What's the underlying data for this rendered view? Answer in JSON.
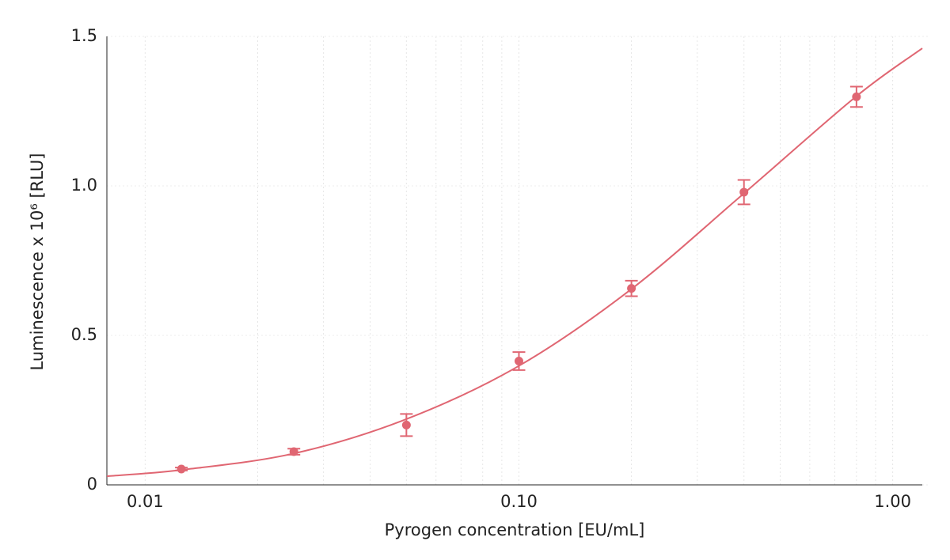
{
  "chart_data": {
    "type": "scatter",
    "xlabel": "Pyrogen concentration [EU/mL]",
    "ylabel": "Luminescence x 10⁶ [RLU]",
    "xscale": "log",
    "xlim": [
      0.0079,
      1.2
    ],
    "ylim": [
      0,
      1.5
    ],
    "xticks": [
      0.01,
      {
        "value": 0.1,
        "label": "0.10"
      },
      {
        "value": 1,
        "label": "1.00"
      }
    ],
    "xminorticks": [
      0.02,
      0.03,
      0.04,
      0.05,
      0.06,
      0.07,
      0.08,
      0.09,
      0.2,
      0.3,
      0.4,
      0.5,
      0.6,
      0.7,
      0.8,
      0.9
    ],
    "yticks": [
      0,
      0.5,
      {
        "value": 1,
        "label": "1.0"
      },
      1.5
    ],
    "grid": true,
    "color": "#e06672",
    "points": {
      "x": [
        0.0125,
        0.025,
        0.05,
        0.1,
        0.2,
        0.4,
        0.8
      ],
      "values": [
        0.053,
        0.111,
        0.2,
        0.414,
        0.657,
        0.979,
        1.298
      ],
      "errors": [
        0.005,
        0.01,
        0.037,
        0.03,
        0.026,
        0.041,
        0.034
      ]
    },
    "fit": {
      "x": [
        0.0079,
        0.0125,
        0.025,
        0.05,
        0.1,
        0.2,
        0.4,
        0.8,
        1.2
      ],
      "values": [
        0.029,
        0.05,
        0.105,
        0.22,
        0.398,
        0.655,
        0.975,
        1.3,
        1.46
      ]
    }
  }
}
